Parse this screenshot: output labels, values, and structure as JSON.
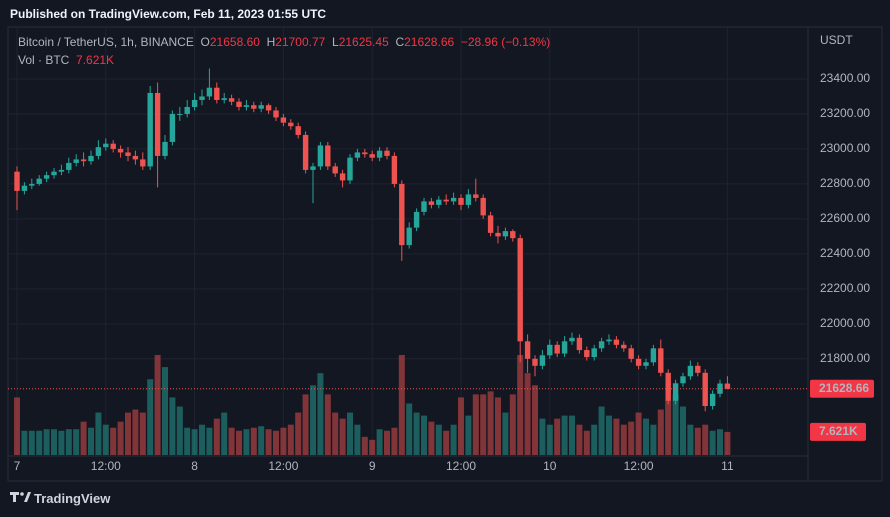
{
  "header": {
    "published": "Published on TradingView.com, Feb 11, 2023 01:55 UTC",
    "brand": "TradingView"
  },
  "legend": {
    "symbol": "Bitcoin / TetherUS, 1h, BINANCE",
    "open_label": "O",
    "open": "21658.60",
    "high_label": "H",
    "high": "21700.77",
    "low_label": "L",
    "low": "21625.45",
    "close_label": "C",
    "close": "21628.66",
    "change": "−28.96 (−0.13%)",
    "volume_label": "Vol · BTC",
    "volume": "7.621K"
  },
  "chart_data": {
    "type": "candlestick",
    "currency": "USDT",
    "up_color": "#26a69a",
    "down_color": "#ef5350",
    "ylim": [
      21250,
      23680
    ],
    "yticks": [
      {
        "value": 21800,
        "label": "21800.00"
      },
      {
        "value": 22000,
        "label": "22000.00"
      },
      {
        "value": 22200,
        "label": "22200.00"
      },
      {
        "value": 22400,
        "label": "22400.00"
      },
      {
        "value": 22600,
        "label": "22600.00"
      },
      {
        "value": 22800,
        "label": "22800.00"
      },
      {
        "value": 23000,
        "label": "23000.00"
      },
      {
        "value": 23200,
        "label": "23200.00"
      },
      {
        "value": 23400,
        "label": "23400.00"
      }
    ],
    "xticks": [
      {
        "value": 0,
        "label": "7"
      },
      {
        "value": 12,
        "label": "12:00"
      },
      {
        "value": 24,
        "label": "8"
      },
      {
        "value": 36,
        "label": "12:00"
      },
      {
        "value": 48,
        "label": "9"
      },
      {
        "value": 60,
        "label": "12:00"
      },
      {
        "value": 72,
        "label": "10"
      },
      {
        "value": 84,
        "label": "12:00"
      },
      {
        "value": 96,
        "label": "11"
      }
    ],
    "grid": true,
    "last_price": 21628.66,
    "last_price_label": "21628.66",
    "last_volume_label": "7.621K",
    "volume_ylim": [
      0,
      33000
    ],
    "candles": [
      [
        22870,
        22900,
        22650,
        22760
      ],
      [
        22760,
        22810,
        22740,
        22790
      ],
      [
        22790,
        22830,
        22770,
        22800
      ],
      [
        22800,
        22850,
        22790,
        22830
      ],
      [
        22830,
        22870,
        22810,
        22850
      ],
      [
        22850,
        22890,
        22830,
        22870
      ],
      [
        22870,
        22910,
        22850,
        22880
      ],
      [
        22880,
        22950,
        22860,
        22920
      ],
      [
        22920,
        22970,
        22900,
        22940
      ],
      [
        22940,
        22980,
        22900,
        22930
      ],
      [
        22930,
        22990,
        22910,
        22960
      ],
      [
        22960,
        23050,
        22940,
        23010
      ],
      [
        23010,
        23060,
        22990,
        23030
      ],
      [
        23030,
        23050,
        22980,
        23000
      ],
      [
        23000,
        23020,
        22950,
        22980
      ],
      [
        22980,
        23010,
        22930,
        22960
      ],
      [
        22960,
        22990,
        22910,
        22940
      ],
      [
        22940,
        22980,
        22880,
        22900
      ],
      [
        22900,
        23360,
        22880,
        23320
      ],
      [
        23320,
        23380,
        22780,
        22960
      ],
      [
        22960,
        23080,
        22940,
        23040
      ],
      [
        23040,
        23220,
        23020,
        23200
      ],
      [
        23200,
        23240,
        23160,
        23200
      ],
      [
        23200,
        23280,
        23180,
        23240
      ],
      [
        23240,
        23320,
        23220,
        23280
      ],
      [
        23280,
        23340,
        23250,
        23300
      ],
      [
        23300,
        23460,
        23280,
        23350
      ],
      [
        23350,
        23380,
        23260,
        23280
      ],
      [
        23280,
        23320,
        23260,
        23290
      ],
      [
        23290,
        23310,
        23250,
        23270
      ],
      [
        23270,
        23290,
        23220,
        23240
      ],
      [
        23240,
        23280,
        23220,
        23250
      ],
      [
        23250,
        23270,
        23210,
        23230
      ],
      [
        23230,
        23270,
        23210,
        23250
      ],
      [
        23250,
        23260,
        23200,
        23220
      ],
      [
        23220,
        23240,
        23160,
        23180
      ],
      [
        23180,
        23200,
        23130,
        23150
      ],
      [
        23150,
        23170,
        23110,
        23130
      ],
      [
        23130,
        23150,
        23060,
        23080
      ],
      [
        23080,
        23100,
        22860,
        22880
      ],
      [
        22880,
        22920,
        22690,
        22900
      ],
      [
        22900,
        23040,
        22880,
        23020
      ],
      [
        23020,
        23040,
        22880,
        22900
      ],
      [
        22900,
        22920,
        22840,
        22860
      ],
      [
        22860,
        22880,
        22780,
        22820
      ],
      [
        22820,
        22970,
        22800,
        22950
      ],
      [
        22950,
        23000,
        22930,
        22980
      ],
      [
        22980,
        23000,
        22950,
        22970
      ],
      [
        22970,
        22990,
        22930,
        22950
      ],
      [
        22950,
        23010,
        22930,
        22990
      ],
      [
        22990,
        23010,
        22940,
        22960
      ],
      [
        22960,
        22980,
        22780,
        22800
      ],
      [
        22800,
        22820,
        22360,
        22450
      ],
      [
        22450,
        22580,
        22430,
        22550
      ],
      [
        22550,
        22660,
        22530,
        22640
      ],
      [
        22640,
        22720,
        22620,
        22700
      ],
      [
        22700,
        22720,
        22660,
        22680
      ],
      [
        22680,
        22730,
        22660,
        22710
      ],
      [
        22710,
        22740,
        22680,
        22700
      ],
      [
        22700,
        22750,
        22680,
        22720
      ],
      [
        22720,
        22740,
        22650,
        22680
      ],
      [
        22680,
        22770,
        22660,
        22740
      ],
      [
        22740,
        22830,
        22700,
        22720
      ],
      [
        22720,
        22740,
        22600,
        22620
      ],
      [
        22620,
        22640,
        22500,
        22520
      ],
      [
        22520,
        22560,
        22460,
        22500
      ],
      [
        22500,
        22550,
        22480,
        22530
      ],
      [
        22530,
        22540,
        22470,
        22490
      ],
      [
        22490,
        22510,
        21780,
        21900
      ],
      [
        21900,
        21940,
        21720,
        21800
      ],
      [
        21800,
        21820,
        21700,
        21760
      ],
      [
        21760,
        21850,
        21740,
        21820
      ],
      [
        21820,
        21910,
        21800,
        21880
      ],
      [
        21880,
        21900,
        21810,
        21830
      ],
      [
        21830,
        21930,
        21810,
        21900
      ],
      [
        21900,
        21950,
        21880,
        21920
      ],
      [
        21920,
        21940,
        21830,
        21850
      ],
      [
        21850,
        21870,
        21790,
        21810
      ],
      [
        21810,
        21880,
        21790,
        21860
      ],
      [
        21860,
        21920,
        21840,
        21900
      ],
      [
        21900,
        21940,
        21880,
        21910
      ],
      [
        21910,
        21930,
        21860,
        21880
      ],
      [
        21880,
        21900,
        21840,
        21860
      ],
      [
        21860,
        21880,
        21780,
        21800
      ],
      [
        21800,
        21820,
        21740,
        21760
      ],
      [
        21760,
        21800,
        21740,
        21780
      ],
      [
        21780,
        21880,
        21760,
        21860
      ],
      [
        21860,
        21910,
        21700,
        21720
      ],
      [
        21720,
        21740,
        21540,
        21560
      ],
      [
        21560,
        21680,
        21540,
        21660
      ],
      [
        21660,
        21720,
        21640,
        21700
      ],
      [
        21700,
        21790,
        21680,
        21760
      ],
      [
        21760,
        21780,
        21700,
        21720
      ],
      [
        21720,
        21740,
        21500,
        21530
      ],
      [
        21530,
        21620,
        21510,
        21600
      ],
      [
        21600,
        21680,
        21580,
        21658.6
      ],
      [
        21658.6,
        21700.77,
        21625.45,
        21628.66
      ]
    ],
    "volume": [
      19000,
      8000,
      8000,
      8000,
      8500,
      8500,
      8000,
      8500,
      8500,
      11000,
      9000,
      14000,
      10000,
      9000,
      11000,
      14000,
      15000,
      14000,
      25000,
      33000,
      29000,
      19000,
      16000,
      9000,
      8500,
      10000,
      9000,
      12000,
      14000,
      9000,
      8000,
      8500,
      9000,
      9500,
      8500,
      8000,
      9000,
      10000,
      14000,
      20000,
      23000,
      27000,
      20000,
      14000,
      12000,
      14000,
      10000,
      6000,
      5000,
      8500,
      8000,
      9000,
      33000,
      17000,
      14000,
      13000,
      11000,
      10000,
      8000,
      10000,
      19000,
      13000,
      20000,
      20000,
      21000,
      19000,
      14000,
      20000,
      33000,
      27000,
      23000,
      12000,
      10000,
      12000,
      13000,
      13000,
      10000,
      8000,
      10000,
      16000,
      13000,
      12000,
      10000,
      11000,
      14000,
      12000,
      10000,
      15000,
      18000,
      20000,
      16000,
      10000,
      9000,
      10000,
      8000,
      8500,
      7621
    ]
  }
}
